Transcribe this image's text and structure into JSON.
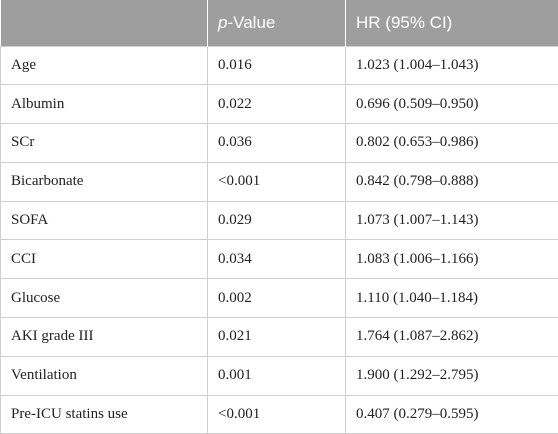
{
  "table": {
    "headers": {
      "col1": "",
      "col2_italic": "p",
      "col2_rest": "-Value",
      "col3": "HR (95% CI)"
    },
    "rows": [
      {
        "variable": "Age",
        "p_value": "0.016",
        "hr": "1.023 (1.004–1.043)"
      },
      {
        "variable": "Albumin",
        "p_value": "0.022",
        "hr": "0.696 (0.509–0.950)"
      },
      {
        "variable": "SCr",
        "p_value": "0.036",
        "hr": "0.802 (0.653–0.986)"
      },
      {
        "variable": "Bicarbonate",
        "p_value": "<0.001",
        "hr": "0.842 (0.798–0.888)"
      },
      {
        "variable": "SOFA",
        "p_value": "0.029",
        "hr": "1.073 (1.007–1.143)"
      },
      {
        "variable": "CCI",
        "p_value": "0.034",
        "hr": "1.083 (1.006–1.166)"
      },
      {
        "variable": "Glucose",
        "p_value": "0.002",
        "hr": "1.110 (1.040–1.184)"
      },
      {
        "variable": "AKI grade III",
        "p_value": "0.021",
        "hr": "1.764 (1.087–2.862)"
      },
      {
        "variable": "Ventilation",
        "p_value": "0.001",
        "hr": "1.900 (1.292–2.795)"
      },
      {
        "variable": "Pre-ICU statins use",
        "p_value": "<0.001",
        "hr": "0.407 (0.279–0.595)"
      }
    ]
  },
  "colors": {
    "header_bg": "#9e9e9e",
    "header_text": "#ffffff",
    "grid": "#cfcfcf"
  }
}
